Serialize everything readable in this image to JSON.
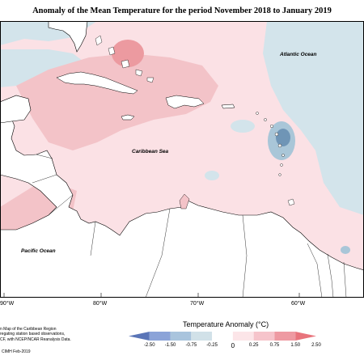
{
  "title": "Anomaly of the Mean Temperature for the period November 2018 to January 2019",
  "labels": {
    "atlantic": "Atlantic Ocean",
    "caribbean": "Caribbean Sea",
    "pacific": "Pacific Ocean"
  },
  "longitudes": [
    "90°W",
    "80°W",
    "70°W",
    "60°W"
  ],
  "footer_notes": [
    "n Map of the Caribbean Region",
    "regating station based observations,",
    "CF, with NCEP/NCAR Reanalysis Data."
  ],
  "credit": "CIMH Feb-2019",
  "legend": {
    "title": "Temperature Anomaly (°C)",
    "ticks": [
      "-2.50",
      "-1.50",
      "-0.75",
      "-0.25",
      "0",
      "0.25",
      "0.75",
      "1.50",
      "2.50"
    ],
    "colors": [
      "#5a75b7",
      "#8ba3d8",
      "#a9c4dd",
      "#d1e1e8",
      "#ffffff",
      "#fce5e8",
      "#f6c4cb",
      "#ee9aa2",
      "#e8747c"
    ]
  },
  "colors": {
    "ocean_warm_light": "#fbe1e5",
    "ocean_warm_mid": "#f3c3c8",
    "ocean_warm_strong": "#ec9aa0",
    "ocean_cool_light": "#d3e4eb",
    "ocean_cool_mid": "#a9c6d8",
    "ocean_cool_strong": "#6f95b6",
    "land": "#ffffff"
  }
}
